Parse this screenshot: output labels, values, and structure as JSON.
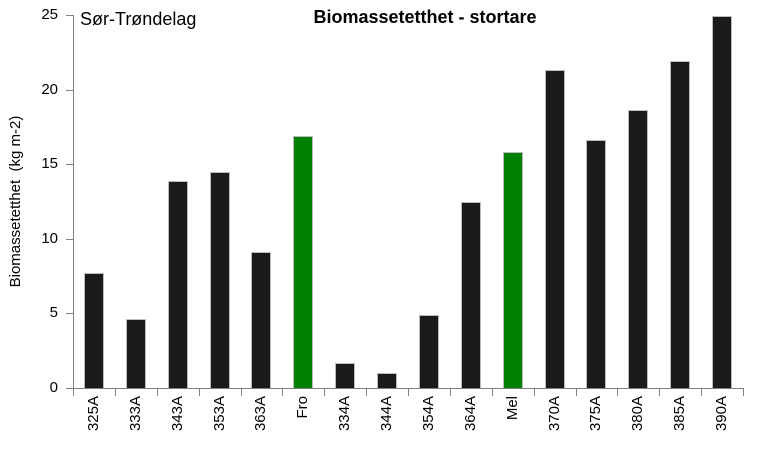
{
  "region_label": "Sør-Trøndelag",
  "chart_data": {
    "type": "bar",
    "title": "Biomassetetthet - stortare",
    "ylabel": "Biomassetetthet  (kg m-2)",
    "xlabel": "",
    "ylim": [
      0,
      25
    ],
    "yticks": [
      0,
      5,
      10,
      15,
      20,
      25
    ],
    "grid": false,
    "legend": "none",
    "categories": [
      "325A",
      "333A",
      "343A",
      "353A",
      "363A",
      "Fro",
      "334A",
      "344A",
      "354A",
      "364A",
      "Mel",
      "370A",
      "375A",
      "380A",
      "385A",
      "390A"
    ],
    "values": [
      7.7,
      4.6,
      13.9,
      14.5,
      9.1,
      16.9,
      1.7,
      1.0,
      4.9,
      12.5,
      15.8,
      21.3,
      16.6,
      18.6,
      21.9,
      24.9
    ],
    "highlighted_categories": [
      "Fro",
      "Mel"
    ],
    "bar_color": "#1a1a1a",
    "highlight_color": "#008000",
    "axis_color": "#808080",
    "background_color": "#ffffff"
  }
}
